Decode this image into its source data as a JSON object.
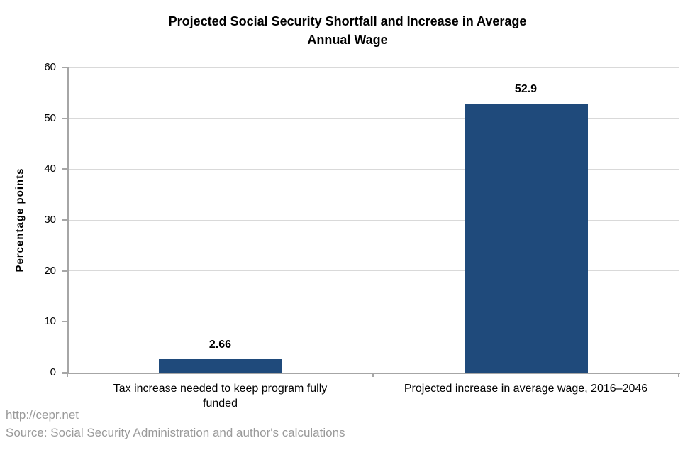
{
  "title_display": "Projected Social Security Shortfall and Increase in Average\nAnnual Wage",
  "footer": {
    "url": "http://cepr.net",
    "source": "Source: Social Security Administration and author's calculations"
  },
  "chart_data": {
    "type": "bar",
    "title": "Projected Social Security Shortfall and Increase in Average Annual Wage",
    "xlabel": "",
    "ylabel": "Percentage points",
    "categories": [
      "Tax increase needed to keep program fully funded",
      "Projected increase in average wage, 2016–2046"
    ],
    "categories_display": [
      "Tax increase needed to keep program fully\nfunded",
      "Projected increase in average wage, 2016–2046"
    ],
    "values": [
      2.66,
      52.9
    ],
    "value_labels": [
      "2.66",
      "52.9"
    ],
    "ylim": [
      0,
      60
    ],
    "yticks": [
      0,
      10,
      20,
      30,
      40,
      50,
      60
    ],
    "grid": true,
    "legend": false,
    "colors": {
      "bar": "#1F4A7B",
      "gridline": "#D9D9D9",
      "axis": "#A6A6A6",
      "text": "#000000",
      "footer_text": "#9A9A9A"
    }
  }
}
